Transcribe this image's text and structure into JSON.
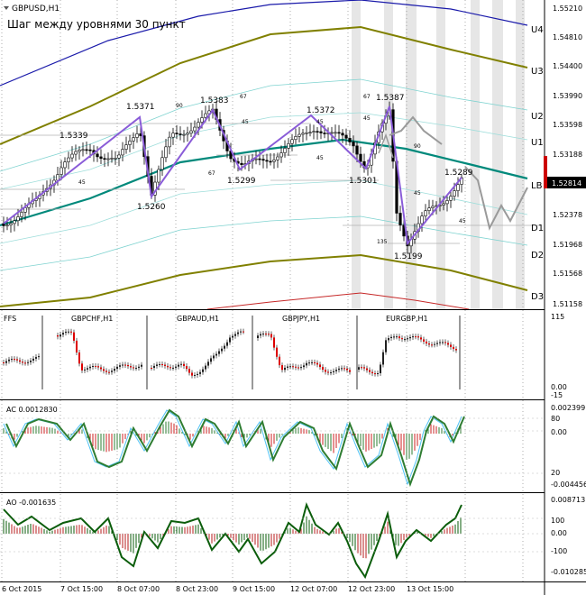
{
  "main": {
    "symbol_title": "GBPUSD,H1",
    "annotation": "Шаг между уровнями 30 пункт",
    "price_axis": [
      "1.55210",
      "1.54810",
      "1.54400",
      "1.53990",
      "1.53598",
      "1.53188",
      "1.52814",
      "1.52378",
      "1.51968",
      "1.51568",
      "1.51158"
    ],
    "current_price": "1.52814",
    "level_labels": [
      "U4",
      "U3",
      "U2",
      "U1",
      "LB",
      "D1",
      "D2",
      "D3"
    ],
    "pivot_labels": [
      "1.5339",
      "1.5371",
      "1.5383",
      "1.5260",
      "1.5299",
      "1.5372",
      "1.5387",
      "1.5301",
      "1.5289",
      "1.5199"
    ],
    "segment_labels": [
      "90",
      "67",
      "45",
      "67",
      "45",
      "45",
      "45",
      "67",
      "45",
      "90",
      "45",
      "45",
      "135"
    ]
  },
  "fx_panel": {
    "title": "FFS",
    "pairs": [
      "GBPCHF,H1",
      "GBPAUD,H1",
      "GBPJPY,H1",
      "EURGBP,H1"
    ],
    "axis": [
      "115",
      "0.00",
      "-15"
    ]
  },
  "ac_panel": {
    "title": "AC 0.0012830",
    "axis": [
      "0.002399",
      "80",
      "0.00",
      "20",
      "-0.004456"
    ]
  },
  "ao_panel": {
    "title": "AO -0.001635",
    "axis": [
      "0.008713",
      "100",
      "0.00",
      "-100",
      "-0.010285"
    ]
  },
  "time_axis": [
    "6 Oct 2015",
    "7 Oct 15:00",
    "8 Oct 07:00",
    "8 Oct 23:00",
    "9 Oct 15:00",
    "12 Oct 07:00",
    "12 Oct 23:00",
    "13 Oct 15:00"
  ],
  "colors": {
    "candle": "#000000",
    "bull_fx": "#202020",
    "bear_fx": "#dd0000",
    "zigzag": "#8a5cd8",
    "midline": "#00897b",
    "olive": "#808000",
    "blue": "#1a1aaa",
    "ac_line": "#2e7d32",
    "ao_line": "#0b5d0b"
  }
}
